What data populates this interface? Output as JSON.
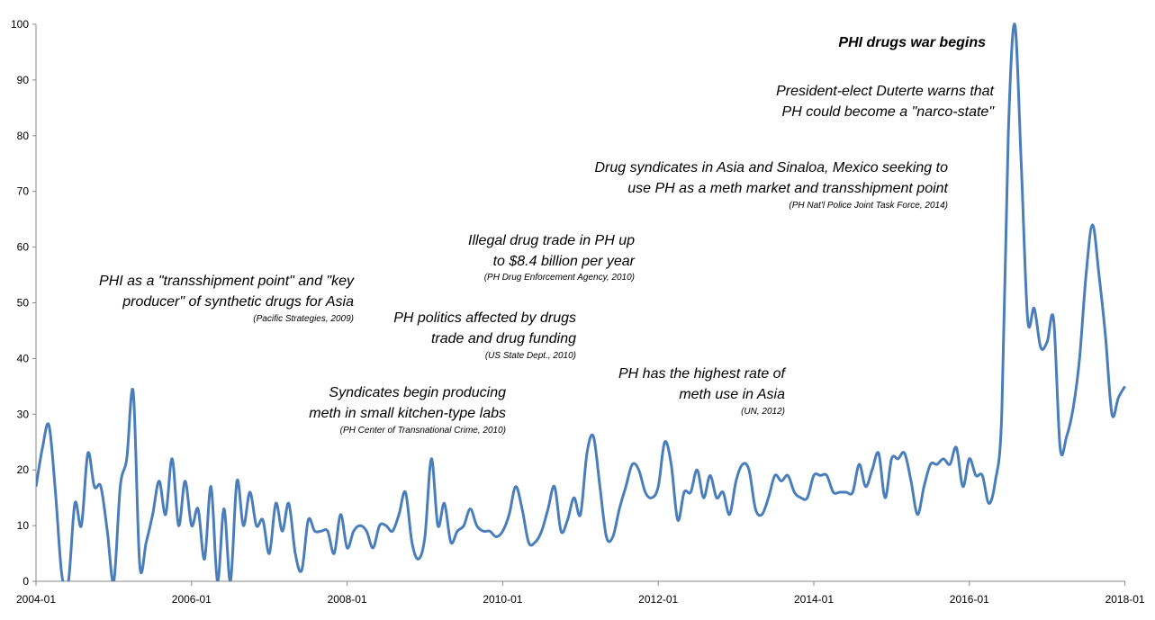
{
  "chart_data": {
    "type": "line",
    "categories": [
      "2004-01",
      null,
      null,
      null,
      null,
      null,
      null,
      null,
      null,
      null,
      null,
      null,
      null,
      null,
      null,
      null,
      null,
      null,
      null,
      null,
      null,
      null,
      null,
      null,
      "2006-01",
      null,
      null,
      null,
      null,
      null,
      null,
      null,
      null,
      null,
      null,
      null,
      null,
      null,
      null,
      null,
      null,
      null,
      null,
      null,
      null,
      null,
      null,
      null,
      "2008-01",
      null,
      null,
      null,
      null,
      null,
      null,
      null,
      null,
      null,
      null,
      null,
      null,
      null,
      null,
      null,
      null,
      null,
      null,
      null,
      null,
      null,
      null,
      null,
      "2010-01",
      null,
      null,
      null,
      null,
      null,
      null,
      null,
      null,
      null,
      null,
      null,
      null,
      null,
      null,
      null,
      null,
      null,
      null,
      null,
      null,
      null,
      null,
      null,
      "2012-01",
      null,
      null,
      null,
      null,
      null,
      null,
      null,
      null,
      null,
      null,
      null,
      null,
      null,
      null,
      null,
      null,
      null,
      null,
      null,
      null,
      null,
      null,
      null,
      "2014-01",
      null,
      null,
      null,
      null,
      null,
      null,
      null,
      null,
      null,
      null,
      null,
      null,
      null,
      null,
      null,
      null,
      null,
      null,
      null,
      null,
      null,
      null,
      null,
      "2016-01",
      null,
      null,
      null,
      null,
      null,
      null,
      null,
      null,
      null,
      null,
      null,
      null,
      null,
      null,
      null,
      null,
      null,
      null,
      null,
      null,
      null,
      null,
      null,
      "2018-01"
    ],
    "values": [
      17,
      24,
      28,
      16,
      1,
      0,
      14,
      10,
      23,
      17,
      17,
      9,
      0,
      17,
      22,
      34,
      3,
      7,
      12,
      18,
      12,
      22,
      10,
      18,
      10,
      13,
      4,
      17,
      0,
      13,
      0,
      18,
      10,
      16,
      10,
      11,
      5,
      14,
      9,
      14,
      5,
      2,
      11,
      9,
      9,
      9,
      5,
      12,
      6,
      9,
      10,
      9,
      6,
      10,
      10,
      9,
      12,
      16,
      7,
      4,
      8,
      22,
      10,
      14,
      7,
      9,
      10,
      13,
      10,
      9,
      9,
      8,
      9,
      12,
      17,
      13,
      7,
      7,
      9,
      13,
      17,
      9,
      11,
      15,
      12,
      23,
      26,
      17,
      8,
      8,
      13,
      17,
      21,
      20,
      16,
      15,
      17,
      25,
      21,
      11,
      16,
      16,
      20,
      15,
      19,
      15,
      16,
      12,
      18,
      21,
      20,
      13,
      12,
      15,
      19,
      18,
      19,
      16,
      15,
      15,
      19,
      19,
      19,
      16,
      16,
      16,
      16,
      21,
      17,
      20,
      23,
      15,
      22,
      22,
      23,
      18,
      12,
      17,
      21,
      21,
      22,
      21,
      24,
      17,
      22,
      19,
      19,
      14,
      18,
      30,
      80,
      100,
      75,
      47,
      49,
      42,
      43,
      47,
      24,
      26,
      31,
      40,
      55,
      64,
      55,
      44,
      30,
      33,
      35
    ],
    "color": "#4a7ebb",
    "ylim": [
      0,
      100
    ],
    "yticks": [
      0,
      10,
      20,
      30,
      40,
      50,
      60,
      70,
      80,
      90,
      100
    ],
    "annotations": [
      {
        "lines": [
          "PHI drugs war begins"
        ]
      },
      {
        "lines": [
          "President-elect Duterte warns that",
          "PH could become a \"narco-state\""
        ]
      },
      {
        "lines": [
          "Drug syndicates in Asia and Sinaloa, Mexico seeking to",
          "use PH as a meth market and transshipment point"
        ],
        "source": "(PH Nat'l Police Joint Task Force, 2014)"
      },
      {
        "lines": [
          "Illegal drug trade in PH up",
          "to $8.4 billion per year"
        ],
        "source": "(PH Drug Enforcement Agency, 2010)"
      },
      {
        "lines": [
          "PHI  as a \"transshipment point\" and \"key",
          "producer\" of synthetic drugs for Asia"
        ],
        "source": "(Pacific Strategies, 2009)"
      },
      {
        "lines": [
          "PH politics affected by drugs",
          "trade and drug funding"
        ],
        "source": "(US State Dept., 2010)"
      },
      {
        "lines": [
          "PH has the highest rate of",
          "meth use in Asia"
        ],
        "source": "(UN, 2012)"
      },
      {
        "lines": [
          "Syndicates begin producing",
          "meth in small kitchen-type labs"
        ],
        "source": "(PH Center of Transnational Crime, 2010)"
      }
    ]
  }
}
